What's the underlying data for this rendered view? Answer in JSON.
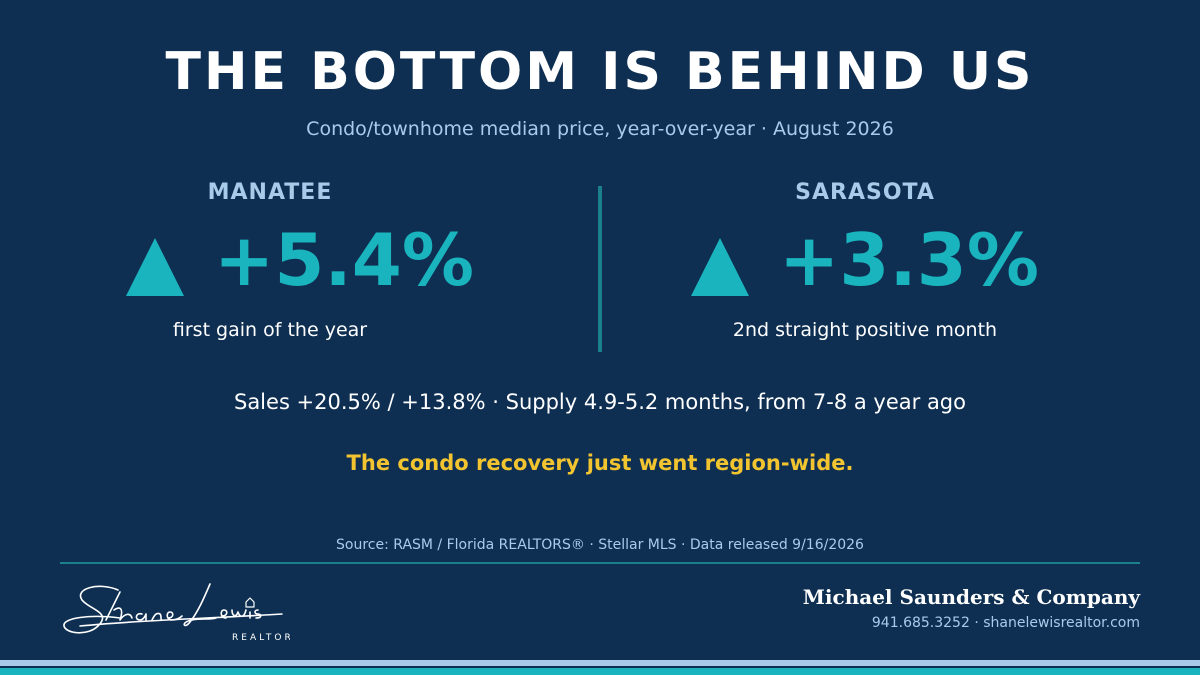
{
  "headline": "THE BOTTOM IS BEHIND US",
  "subtitle": "Condo/townhome median price, year-over-year · August 2026",
  "regions": [
    {
      "name": "MANATEE",
      "direction": "up",
      "change": "+5.4%",
      "note": "first gain of the year"
    },
    {
      "name": "SARASOTA",
      "direction": "up",
      "change": "+3.3%",
      "note": "2nd straight positive month"
    }
  ],
  "stats_line": "Sales +20.5% / +13.8% · Supply 4.9-5.2 months, from 7-8 a year ago",
  "tagline": "The condo recovery just went region-wide.",
  "source": "Source: RASM / Florida REALTORS® · Stellar MLS · Data released 9/16/2026",
  "footer": {
    "logo_name": "Shane Lewis",
    "logo_title": "REALTOR",
    "company": "Michael Saunders & Company",
    "contact": "941.685.3252 · shanelewisrealtor.com"
  },
  "colors": {
    "background": "#0e2f52",
    "accent_teal": "#19b4bd",
    "light_blue": "#a9cbea",
    "highlight_yellow": "#f2c42f"
  },
  "icons": {
    "up_arrow": "triangle-up-icon"
  }
}
